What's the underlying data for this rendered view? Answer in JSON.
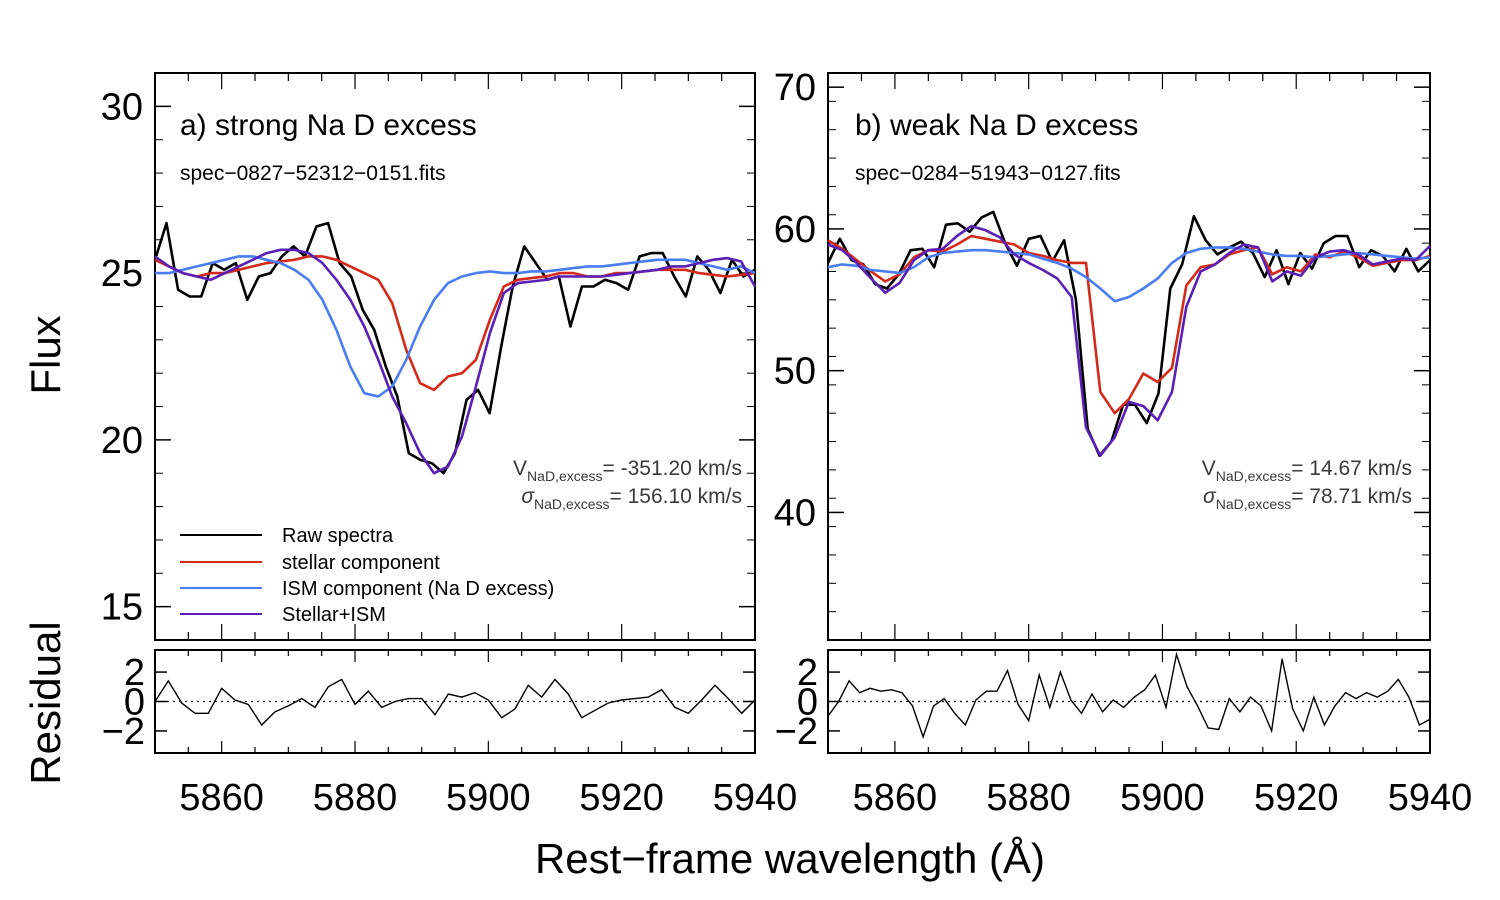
{
  "chart_data": {
    "type": "line",
    "xlabel": "Rest−frame wavelength (Å)",
    "ylabel_top": "Flux",
    "ylabel_bottom": "Residual",
    "x": [
      5850,
      5852,
      5854,
      5856,
      5858,
      5860,
      5862,
      5864,
      5866,
      5868,
      5870,
      5872,
      5874,
      5876,
      5878,
      5880,
      5882,
      5884,
      5886,
      5888,
      5890,
      5892,
      5894,
      5896,
      5898,
      5900,
      5902,
      5904,
      5906,
      5908,
      5910,
      5912,
      5914,
      5916,
      5918,
      5920,
      5922,
      5924,
      5926,
      5928,
      5930,
      5932,
      5934,
      5936,
      5938,
      5940
    ],
    "colors": {
      "raw": "#000000",
      "stellar": "#d42a1a",
      "ism": "#4a7cf2",
      "total": "#5a1fb5"
    },
    "legend": {
      "raw": "Raw spectra",
      "stellar": "stellar component",
      "ism": "ISM component (Na D excess)",
      "total": "Stellar+ISM"
    },
    "panels": [
      {
        "title": "a) strong Na D excess",
        "file": "spec−0827−52312−0151.fits",
        "v_label": "V",
        "v_sub": "NaD,excess",
        "v_value": "= -351.20 km/s",
        "sigma_label": "σ",
        "sigma_sub": "NaD,excess",
        "sigma_value": "=  156.10 km/s",
        "ylim": [
          14,
          31
        ],
        "yticks": [
          15,
          20,
          25,
          30
        ],
        "xticks": [
          5860,
          5880,
          5900,
          5920,
          5940
        ],
        "residual_ylim": [
          -3.5,
          3.5
        ],
        "residual_yticks": [
          -2,
          0,
          2
        ],
        "series": {
          "raw": [
            25.4,
            26.5,
            24.5,
            24.3,
            24.3,
            25.3,
            25.1,
            25.3,
            24.2,
            24.9,
            25.0,
            25.5,
            25.8,
            25.5,
            26.4,
            26.5,
            25.3,
            24.9,
            23.9,
            23.3,
            22.2,
            21.3,
            19.6,
            19.4,
            19.3,
            19.0,
            19.6,
            21.2,
            21.5,
            20.8,
            22.8,
            24.6,
            25.8,
            25.3,
            24.8,
            24.9,
            23.4,
            24.6,
            24.6,
            24.8,
            24.7,
            24.5,
            25.5,
            25.6,
            25.6,
            24.9,
            24.3,
            25.5,
            25.1,
            24.4,
            25.4,
            24.9,
            25.1
          ],
          "stellar": [
            25.4,
            25.2,
            25.0,
            24.9,
            25.0,
            25.0,
            25.1,
            25.2,
            25.3,
            25.35,
            25.4,
            25.5,
            25.5,
            25.4,
            25.2,
            25.0,
            24.8,
            24.1,
            22.7,
            21.7,
            21.5,
            21.9,
            22.0,
            22.4,
            23.6,
            24.6,
            24.8,
            24.85,
            24.9,
            25.0,
            25.0,
            24.9,
            24.9,
            25.0,
            25.0,
            25.05,
            25.1,
            25.1,
            25.1,
            25.0,
            24.95,
            24.9,
            24.95,
            25.0
          ],
          "ism": [
            25.0,
            25.0,
            25.1,
            25.2,
            25.3,
            25.4,
            25.5,
            25.5,
            25.4,
            25.3,
            25.1,
            24.8,
            24.2,
            23.3,
            22.2,
            21.4,
            21.3,
            21.6,
            22.4,
            23.4,
            24.2,
            24.7,
            24.9,
            25.0,
            25.05,
            25.0,
            25.0,
            25.05,
            25.05,
            25.1,
            25.15,
            25.2,
            25.2,
            25.25,
            25.3,
            25.35,
            25.4,
            25.4,
            25.4,
            25.3,
            25.2,
            25.1,
            25.2,
            25.0
          ],
          "total": [
            25.5,
            25.2,
            25.0,
            24.9,
            24.8,
            25.0,
            25.2,
            25.4,
            25.6,
            25.7,
            25.7,
            25.6,
            25.3,
            24.8,
            24.2,
            23.4,
            22.4,
            21.3,
            20.5,
            19.6,
            19.0,
            19.2,
            20.1,
            21.6,
            23.2,
            24.4,
            24.7,
            24.75,
            24.8,
            24.9,
            24.9,
            24.9,
            24.9,
            24.95,
            25.0,
            25.05,
            25.1,
            25.2,
            25.2,
            25.3,
            25.4,
            25.45,
            25.35,
            24.6
          ],
          "residual": [
            0.0,
            1.4,
            -0.1,
            -0.8,
            -0.8,
            0.9,
            0.1,
            -0.2,
            -1.6,
            -0.7,
            -0.3,
            0.2,
            -0.4,
            1.0,
            1.5,
            -0.2,
            0.7,
            -0.4,
            0.0,
            0.2,
            0.2,
            -0.9,
            0.5,
            0.3,
            0.6,
            0.1,
            -1.1,
            -0.5,
            1.1,
            0.3,
            1.5,
            0.5,
            -1.1,
            -0.6,
            -0.1,
            0.1,
            0.2,
            0.3,
            0.8,
            -0.4,
            -0.8,
            0.1,
            1.1,
            0.2,
            -0.8,
            0.1
          ]
        }
      },
      {
        "title": "b) weak Na D excess",
        "file": "spec−0284−51943−0127.fits",
        "v_label": "V",
        "v_sub": "NaD,excess",
        "v_value": "=   14.67 km/s",
        "sigma_label": "σ",
        "sigma_sub": "NaD,excess",
        "sigma_value": "=   78.71 km/s",
        "ylim": [
          31,
          71
        ],
        "yticks": [
          40,
          50,
          60,
          70
        ],
        "xticks": [
          5860,
          5880,
          5900,
          5920,
          5940
        ],
        "residual_ylim": [
          -3.5,
          3.5
        ],
        "residual_yticks": [
          -2,
          0,
          2
        ],
        "series": {
          "raw": [
            57.6,
            59.3,
            57.8,
            57.5,
            56.1,
            55.8,
            56.8,
            58.5,
            58.6,
            57.3,
            60.3,
            60.4,
            59.8,
            60.8,
            61.2,
            59.0,
            57.4,
            59.3,
            59.5,
            57.7,
            59.2,
            55.0,
            45.9,
            44.0,
            45.0,
            47.6,
            47.6,
            46.3,
            48.4,
            55.8,
            57.5,
            60.9,
            59.2,
            58.2,
            58.7,
            59.1,
            58.3,
            56.6,
            58.5,
            56.1,
            58.3,
            57.2,
            59.0,
            59.5,
            59.5,
            57.3,
            58.5,
            58.1,
            57.0,
            58.6,
            57.0,
            57.8
          ],
          "stellar": [
            59.2,
            58.6,
            57.8,
            57.0,
            56.3,
            56.8,
            58.0,
            58.5,
            58.4,
            58.9,
            59.5,
            59.3,
            59.1,
            58.9,
            58.3,
            58.1,
            57.8,
            57.6,
            57.6,
            48.5,
            47.0,
            48.0,
            49.8,
            49.2,
            50.2,
            56.0,
            57.3,
            57.5,
            58.2,
            58.5,
            58.7,
            56.8,
            57.3,
            57.0,
            58.2,
            58.0,
            58.4,
            58.0,
            57.4,
            57.6,
            57.8,
            57.8,
            58.1
          ],
          "ism": [
            57.3,
            57.5,
            57.4,
            57.1,
            57.0,
            56.9,
            57.3,
            58.0,
            58.3,
            58.4,
            58.5,
            58.5,
            58.4,
            58.3,
            58.2,
            57.9,
            57.6,
            57.2,
            56.6,
            55.8,
            54.9,
            55.2,
            55.8,
            56.5,
            57.6,
            58.3,
            58.6,
            58.7,
            58.7,
            58.6,
            58.4,
            58.2,
            58.1,
            58.1,
            58.0,
            58.1,
            58.2,
            58.3,
            58.2,
            58.1,
            58.0,
            57.9,
            58.0
          ],
          "total": [
            58.9,
            58.5,
            57.6,
            56.5,
            55.5,
            56.2,
            57.8,
            58.5,
            58.6,
            59.5,
            60.2,
            59.9,
            59.4,
            58.2,
            57.6,
            57.1,
            56.5,
            55.2,
            46.0,
            44.0,
            45.3,
            47.8,
            47.5,
            46.5,
            48.5,
            54.5,
            57.0,
            57.5,
            58.3,
            58.9,
            58.7,
            56.3,
            57.0,
            56.7,
            58.0,
            58.4,
            58.5,
            58.2,
            57.5,
            57.7,
            57.9,
            57.8,
            58.8
          ],
          "residual": [
            -1.0,
            0.0,
            1.4,
            0.6,
            0.9,
            0.7,
            0.8,
            0.6,
            -0.3,
            -2.4,
            -0.3,
            0.2,
            -0.8,
            -1.6,
            0.1,
            0.7,
            0.7,
            2.1,
            -0.2,
            -1.3,
            1.8,
            -0.4,
            2.0,
            0.1,
            -0.8,
            0.5,
            -0.7,
            0.1,
            -0.4,
            0.3,
            0.8,
            1.8,
            -0.4,
            3.2,
            1.0,
            -0.3,
            -1.8,
            -1.9,
            0.2,
            -0.7,
            0.3,
            -0.3,
            -2.0,
            2.9,
            -0.5,
            -2.0,
            0.3,
            -1.6,
            -0.3,
            0.6,
            0.2,
            0.6,
            0.3,
            0.7,
            1.5,
            0.3,
            -1.6,
            -1.2
          ]
        }
      }
    ]
  }
}
